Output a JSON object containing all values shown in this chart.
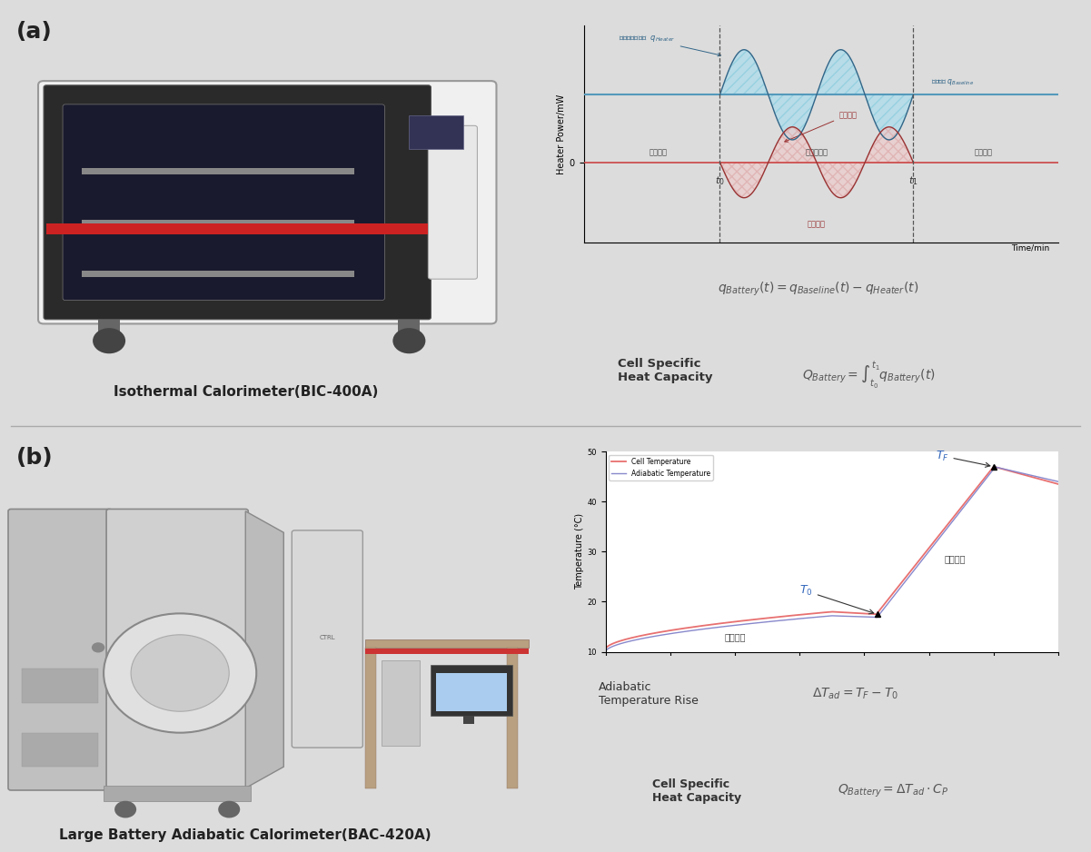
{
  "fig_width": 12.01,
  "fig_height": 9.38,
  "bg_color": "#dcdcdc",
  "panel_a_bg": "#dcdcdc",
  "panel_b_bg": "#dcdcdc",
  "panel_a_label": "(a)",
  "panel_b_label": "(b)",
  "panel_a_caption": "Isothermal Calorimeter(BIC-400A)",
  "panel_b_caption": "Large Battery Adiabatic Calorimeter(BAC-420A)",
  "wave_bg": "#dcdcdc",
  "temp_bg": "white",
  "wave_baseline_color": "#5599bb",
  "wave_zero_color": "#cc4444",
  "wave_upper_color": "#77bbcc",
  "wave_lower_color": "#cc8888",
  "wave_upper_line": "#336688",
  "wave_lower_line": "#993333",
  "temp_cell_color": "#e87070",
  "temp_adi_color": "#8888cc",
  "label_color": "#444444",
  "eq_color": "#555555",
  "bold_color": "#333333",
  "annotation_color": "#3366bb"
}
